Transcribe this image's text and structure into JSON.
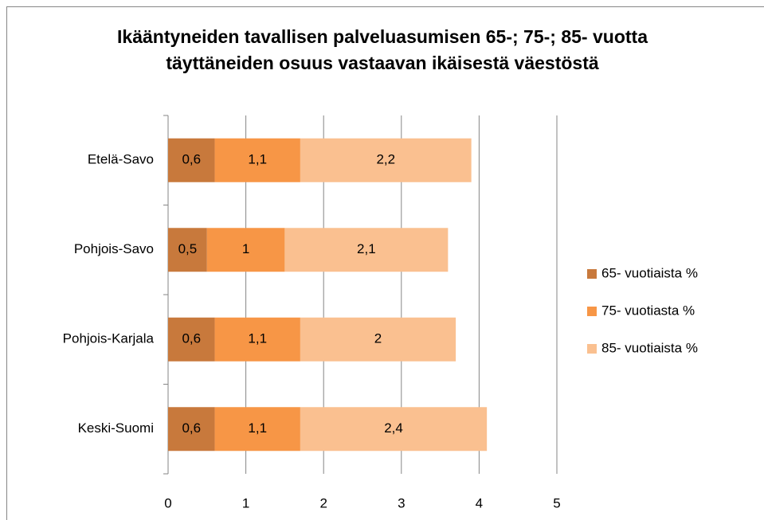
{
  "chart_data": {
    "type": "stacked_barh",
    "title": "Ikääntyneiden tavallisen palveluasumisen 65-; 75-; 85- vuotta täyttäneiden osuus vastaavan ikäisestä väestöstä",
    "categories": [
      "Etelä-Savo",
      "Pohjois-Savo",
      "Pohjois-Karjala",
      "Keski-Suomi"
    ],
    "series": [
      {
        "name": "65- vuotiaista %",
        "color": "#c8793c",
        "values": [
          0.6,
          0.5,
          0.6,
          0.6
        ],
        "value_labels": [
          "0,6",
          "0,5",
          "0,6",
          "0,6"
        ]
      },
      {
        "name": "75- vuotiasta %",
        "color": "#f79646",
        "values": [
          1.1,
          1,
          1.1,
          1.1
        ],
        "value_labels": [
          "1,1",
          "1",
          "1,1",
          "1,1"
        ]
      },
      {
        "name": "85- vuotiaista %",
        "color": "#fac090",
        "values": [
          2.2,
          2.1,
          2,
          2.4
        ],
        "value_labels": [
          "2,2",
          "2,1",
          "2",
          "2,4"
        ]
      }
    ],
    "xlim": [
      0,
      5
    ],
    "xticks": [
      0,
      1,
      2,
      3,
      4,
      5
    ],
    "grid": true,
    "legend": "right"
  }
}
